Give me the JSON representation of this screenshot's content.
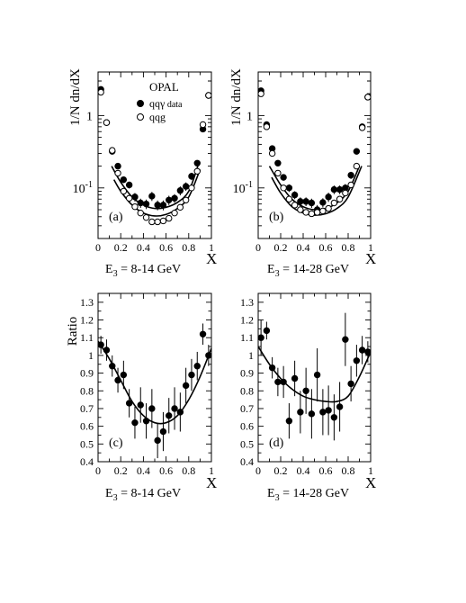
{
  "chart_data": [
    {
      "id": "a",
      "type": "scatter",
      "panel_label": "(a)",
      "ylabel": "1/N dn/dX",
      "xlabel": "X",
      "caption": "E",
      "caption_sub": "3",
      "caption_rest": " = 8-14 GeV",
      "y_scale": "log",
      "xlim": [
        0,
        1
      ],
      "ylim": [
        0.02,
        4
      ],
      "x_ticks": [
        "0",
        "0.2",
        "0.4",
        "0.6",
        "0.8",
        "1"
      ],
      "y_tick_labels": [
        {
          "base": "10",
          "exp": "-1",
          "value": 0.1
        },
        {
          "base": "1",
          "exp": "",
          "value": 1
        }
      ],
      "legend": {
        "title": "OPAL",
        "entries": [
          {
            "marker": "filled",
            "label_main": "qq",
            "label_extra": "γ",
            "label_rest": " data"
          },
          {
            "marker": "open",
            "label_main": "qqg",
            "label_extra": "",
            "label_rest": ""
          }
        ]
      },
      "series": [
        {
          "marker": "filled",
          "points": [
            [
              0.025,
              2.3,
              0.2
            ],
            [
              0.075,
              0.8,
              0.06
            ],
            [
              0.125,
              0.32,
              0.025
            ],
            [
              0.175,
              0.2,
              0.016
            ],
            [
              0.225,
              0.13,
              0.013
            ],
            [
              0.275,
              0.11,
              0.012
            ],
            [
              0.325,
              0.075,
              0.01
            ],
            [
              0.375,
              0.062,
              0.009
            ],
            [
              0.425,
              0.06,
              0.009
            ],
            [
              0.475,
              0.077,
              0.011
            ],
            [
              0.525,
              0.058,
              0.009
            ],
            [
              0.575,
              0.058,
              0.009
            ],
            [
              0.625,
              0.068,
              0.01
            ],
            [
              0.675,
              0.072,
              0.01
            ],
            [
              0.725,
              0.092,
              0.013
            ],
            [
              0.775,
              0.105,
              0.014
            ],
            [
              0.825,
              0.145,
              0.017
            ],
            [
              0.875,
              0.22,
              0.02
            ],
            [
              0.925,
              0.65,
              0.05
            ],
            [
              0.975,
              1.9,
              0.15
            ]
          ]
        },
        {
          "marker": "open",
          "points": [
            [
              0.025,
              2.1,
              0
            ],
            [
              0.075,
              0.8,
              0
            ],
            [
              0.125,
              0.33,
              0
            ],
            [
              0.175,
              0.16,
              0
            ],
            [
              0.225,
              0.09,
              0
            ],
            [
              0.275,
              0.072,
              0
            ],
            [
              0.325,
              0.055,
              0
            ],
            [
              0.375,
              0.045,
              0
            ],
            [
              0.425,
              0.039,
              0
            ],
            [
              0.475,
              0.034,
              0
            ],
            [
              0.525,
              0.034,
              0
            ],
            [
              0.575,
              0.035,
              0
            ],
            [
              0.625,
              0.038,
              0
            ],
            [
              0.675,
              0.045,
              0
            ],
            [
              0.725,
              0.054,
              0
            ],
            [
              0.775,
              0.068,
              0
            ],
            [
              0.825,
              0.1,
              0
            ],
            [
              0.875,
              0.17,
              0
            ],
            [
              0.925,
              0.75,
              0
            ],
            [
              0.975,
              1.9,
              0
            ]
          ]
        }
      ],
      "curves": [
        [
          [
            0.12,
            0.2
          ],
          [
            0.2,
            0.12
          ],
          [
            0.3,
            0.075
          ],
          [
            0.4,
            0.058
          ],
          [
            0.5,
            0.052
          ],
          [
            0.6,
            0.054
          ],
          [
            0.7,
            0.063
          ],
          [
            0.8,
            0.09
          ],
          [
            0.88,
            0.2
          ]
        ],
        [
          [
            0.14,
            0.13
          ],
          [
            0.2,
            0.09
          ],
          [
            0.3,
            0.058
          ],
          [
            0.4,
            0.045
          ],
          [
            0.5,
            0.041
          ],
          [
            0.6,
            0.043
          ],
          [
            0.7,
            0.052
          ],
          [
            0.8,
            0.075
          ],
          [
            0.9,
            0.18
          ]
        ]
      ]
    },
    {
      "id": "b",
      "type": "scatter",
      "panel_label": "(b)",
      "ylabel": "1/N dn/dX",
      "xlabel": "X",
      "caption": "E",
      "caption_sub": "3",
      "caption_rest": " = 14-28 GeV",
      "y_scale": "log",
      "xlim": [
        0,
        1
      ],
      "ylim": [
        0.02,
        4
      ],
      "x_ticks": [
        "0",
        "0.2",
        "0.4",
        "0.6",
        "0.8",
        "1"
      ],
      "y_tick_labels": [
        {
          "base": "10",
          "exp": "-1",
          "value": 0.1
        },
        {
          "base": "1",
          "exp": "",
          "value": 1
        }
      ],
      "series": [
        {
          "marker": "filled",
          "points": [
            [
              0.025,
              2.2,
              0.2
            ],
            [
              0.075,
              0.75,
              0.06
            ],
            [
              0.125,
              0.35,
              0.03
            ],
            [
              0.175,
              0.22,
              0.018
            ],
            [
              0.225,
              0.14,
              0.014
            ],
            [
              0.275,
              0.1,
              0.012
            ],
            [
              0.325,
              0.08,
              0.01
            ],
            [
              0.375,
              0.065,
              0.009
            ],
            [
              0.425,
              0.065,
              0.009
            ],
            [
              0.475,
              0.062,
              0.009
            ],
            [
              0.525,
              0.05,
              0.008
            ],
            [
              0.575,
              0.063,
              0.009
            ],
            [
              0.625,
              0.075,
              0.011
            ],
            [
              0.675,
              0.095,
              0.013
            ],
            [
              0.725,
              0.095,
              0.013
            ],
            [
              0.775,
              0.1,
              0.013
            ],
            [
              0.825,
              0.15,
              0.017
            ],
            [
              0.875,
              0.32,
              0.03
            ],
            [
              0.925,
              0.7,
              0.05
            ],
            [
              0.975,
              1.8,
              0.15
            ]
          ]
        },
        {
          "marker": "open",
          "points": [
            [
              0.025,
              2.0,
              0
            ],
            [
              0.075,
              0.7,
              0
            ],
            [
              0.125,
              0.3,
              0
            ],
            [
              0.175,
              0.16,
              0
            ],
            [
              0.225,
              0.1,
              0
            ],
            [
              0.275,
              0.07,
              0
            ],
            [
              0.325,
              0.058,
              0
            ],
            [
              0.375,
              0.05,
              0
            ],
            [
              0.425,
              0.046,
              0
            ],
            [
              0.475,
              0.044,
              0
            ],
            [
              0.525,
              0.046,
              0
            ],
            [
              0.575,
              0.048,
              0
            ],
            [
              0.625,
              0.052,
              0
            ],
            [
              0.675,
              0.062,
              0
            ],
            [
              0.725,
              0.07,
              0
            ],
            [
              0.775,
              0.085,
              0
            ],
            [
              0.825,
              0.11,
              0
            ],
            [
              0.875,
              0.2,
              0
            ],
            [
              0.925,
              0.68,
              0
            ],
            [
              0.975,
              1.8,
              0
            ]
          ]
        }
      ],
      "curves": [
        [
          [
            0.1,
            0.2
          ],
          [
            0.2,
            0.11
          ],
          [
            0.3,
            0.07
          ],
          [
            0.4,
            0.055
          ],
          [
            0.5,
            0.05
          ],
          [
            0.6,
            0.052
          ],
          [
            0.7,
            0.062
          ],
          [
            0.8,
            0.09
          ],
          [
            0.9,
            0.2
          ]
        ],
        [
          [
            0.12,
            0.14
          ],
          [
            0.2,
            0.085
          ],
          [
            0.3,
            0.055
          ],
          [
            0.4,
            0.045
          ],
          [
            0.5,
            0.042
          ],
          [
            0.6,
            0.044
          ],
          [
            0.7,
            0.052
          ],
          [
            0.8,
            0.075
          ],
          [
            0.92,
            0.2
          ]
        ]
      ]
    },
    {
      "id": "c",
      "type": "scatter",
      "panel_label": "(c)",
      "ylabel": "Ratio",
      "xlabel": "X",
      "caption": "E",
      "caption_sub": "3",
      "caption_rest": " = 8-14 GeV",
      "y_scale": "linear",
      "xlim": [
        0,
        1
      ],
      "ylim": [
        0.4,
        1.35
      ],
      "x_ticks": [
        "0",
        "0.2",
        "0.4",
        "0.6",
        "0.8",
        "1"
      ],
      "y_ticks": [
        "0.4",
        "0.5",
        "0.6",
        "0.7",
        "0.8",
        "0.9",
        "1",
        "1.1",
        "1.2",
        "1.3"
      ],
      "series": [
        {
          "marker": "filled",
          "points": [
            [
              0.025,
              1.06,
              0.05
            ],
            [
              0.075,
              1.03,
              0.06
            ],
            [
              0.125,
              0.94,
              0.06
            ],
            [
              0.175,
              0.86,
              0.07
            ],
            [
              0.225,
              0.89,
              0.08
            ],
            [
              0.275,
              0.73,
              0.08
            ],
            [
              0.325,
              0.62,
              0.09
            ],
            [
              0.375,
              0.72,
              0.1
            ],
            [
              0.425,
              0.63,
              0.1
            ],
            [
              0.475,
              0.7,
              0.11
            ],
            [
              0.525,
              0.52,
              0.1
            ],
            [
              0.575,
              0.57,
              0.11
            ],
            [
              0.625,
              0.66,
              0.1
            ],
            [
              0.675,
              0.7,
              0.12
            ],
            [
              0.725,
              0.68,
              0.11
            ],
            [
              0.775,
              0.83,
              0.1
            ],
            [
              0.825,
              0.89,
              0.09
            ],
            [
              0.875,
              0.94,
              0.08
            ],
            [
              0.925,
              1.12,
              0.06
            ],
            [
              0.975,
              1.0,
              0.06
            ]
          ]
        }
      ],
      "curves": [
        [
          [
            0.0,
            1.08
          ],
          [
            0.1,
            0.98
          ],
          [
            0.2,
            0.86
          ],
          [
            0.3,
            0.74
          ],
          [
            0.4,
            0.66
          ],
          [
            0.5,
            0.62
          ],
          [
            0.6,
            0.62
          ],
          [
            0.7,
            0.66
          ],
          [
            0.8,
            0.75
          ],
          [
            0.9,
            0.88
          ],
          [
            1.0,
            1.04
          ]
        ]
      ]
    },
    {
      "id": "d",
      "type": "scatter",
      "panel_label": "(d)",
      "ylabel": "Ratio",
      "xlabel": "X",
      "caption": "E",
      "caption_sub": "3",
      "caption_rest": " = 14-28 GeV",
      "y_scale": "linear",
      "xlim": [
        0,
        1
      ],
      "ylim": [
        0.4,
        1.35
      ],
      "x_ticks": [
        "0",
        "0.2",
        "0.4",
        "0.6",
        "0.8",
        "1"
      ],
      "y_ticks": [
        "0.4",
        "0.5",
        "0.6",
        "0.7",
        "0.8",
        "0.9",
        "1",
        "1.1",
        "1.2",
        "1.3"
      ],
      "series": [
        {
          "marker": "filled",
          "points": [
            [
              0.025,
              1.1,
              0.1
            ],
            [
              0.075,
              1.14,
              0.05
            ],
            [
              0.125,
              0.93,
              0.06
            ],
            [
              0.175,
              0.85,
              0.08
            ],
            [
              0.225,
              0.85,
              0.09
            ],
            [
              0.275,
              0.63,
              0.1
            ],
            [
              0.325,
              0.87,
              0.1
            ],
            [
              0.375,
              0.68,
              0.12
            ],
            [
              0.425,
              0.8,
              0.13
            ],
            [
              0.475,
              0.67,
              0.14
            ],
            [
              0.525,
              0.89,
              0.15
            ],
            [
              0.575,
              0.68,
              0.13
            ],
            [
              0.625,
              0.69,
              0.14
            ],
            [
              0.675,
              0.65,
              0.13
            ],
            [
              0.725,
              0.71,
              0.14
            ],
            [
              0.775,
              1.09,
              0.15
            ],
            [
              0.825,
              0.84,
              0.1
            ],
            [
              0.875,
              0.97,
              0.09
            ],
            [
              0.925,
              1.03,
              0.08
            ],
            [
              0.975,
              1.02,
              0.06
            ]
          ]
        }
      ],
      "curves": [
        [
          [
            0.0,
            1.05
          ],
          [
            0.1,
            0.95
          ],
          [
            0.2,
            0.87
          ],
          [
            0.3,
            0.81
          ],
          [
            0.4,
            0.77
          ],
          [
            0.5,
            0.75
          ],
          [
            0.6,
            0.74
          ],
          [
            0.7,
            0.74
          ],
          [
            0.8,
            0.77
          ],
          [
            0.9,
            0.88
          ],
          [
            1.0,
            1.02
          ]
        ]
      ]
    }
  ]
}
